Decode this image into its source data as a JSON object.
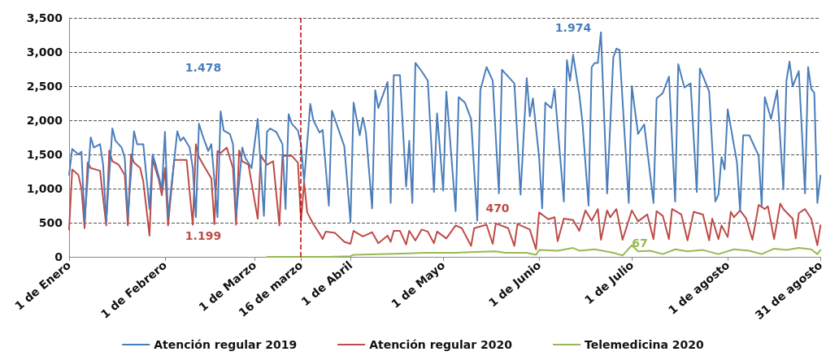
{
  "chart_data": {
    "type": "line",
    "xlim": [
      "2020-01-01",
      "2020-08-31"
    ],
    "xticks": [
      {
        "value": "2020-01-01",
        "label": "1 de Enero"
      },
      {
        "value": "2020-02-01",
        "label": "1 de Febrero"
      },
      {
        "value": "2020-03-01",
        "label": "1 de Marzo"
      },
      {
        "value": "2020-03-16",
        "label": "16 de marzo"
      },
      {
        "value": "2020-04-01",
        "label": "1 de Abril"
      },
      {
        "value": "2020-05-01",
        "label": "1 de Mayo"
      },
      {
        "value": "2020-06-01",
        "label": "1 de Junio"
      },
      {
        "value": "2020-07-01",
        "label": "1 de Julio"
      },
      {
        "value": "2020-08-01",
        "label": "1 de agosto"
      },
      {
        "value": "2020-08-31",
        "label": "31 de agosto"
      }
    ],
    "ylim": [
      0,
      3500
    ],
    "yticks": [
      0,
      500,
      {
        "value": 1000,
        "label": "1,000"
      },
      {
        "value": 1500,
        "label": "1,500"
      },
      {
        "value": 2000,
        "label": "2,000"
      },
      {
        "value": 2500,
        "label": "2,500"
      },
      {
        "value": 3000,
        "label": "3,000"
      },
      {
        "value": 3500,
        "label": "3,500"
      }
    ],
    "grid": "y",
    "legend": "bottom",
    "marker": "none",
    "line_style": "solid",
    "ref_lines": [
      {
        "axis": "x",
        "value": "2020-03-16",
        "label": null,
        "color": "#c00000",
        "line_style": "dashed"
      }
    ],
    "annotations": [
      "1.478",
      "1.199",
      "1.974",
      "470",
      "67"
    ],
    "series": [
      {
        "name": "Atención regular 2019",
        "color": "#4a7ebb",
        "x": [
          "2020-01-01",
          "2020-01-02",
          "2020-01-04",
          "2020-01-05",
          "2020-01-06",
          "2020-01-08",
          "2020-01-09",
          "2020-01-11",
          "2020-01-12",
          "2020-01-13",
          "2020-01-15",
          "2020-01-16",
          "2020-01-18",
          "2020-01-19",
          "2020-01-20",
          "2020-01-22",
          "2020-01-23",
          "2020-01-25",
          "2020-01-27",
          "2020-01-28",
          "2020-01-29",
          "2020-01-31",
          "2020-02-01",
          "2020-02-02",
          "2020-02-05",
          "2020-02-06",
          "2020-02-07",
          "2020-02-09",
          "2020-02-10",
          "2020-02-11",
          "2020-02-12",
          "2020-02-13",
          "2020-02-15",
          "2020-02-16",
          "2020-02-18",
          "2020-02-19",
          "2020-02-20",
          "2020-02-22",
          "2020-02-23",
          "2020-02-24",
          "2020-02-26",
          "2020-02-27",
          "2020-02-29",
          "2020-03-02",
          "2020-03-04",
          "2020-03-05",
          "2020-03-06",
          "2020-03-08",
          "2020-03-10",
          "2020-03-11",
          "2020-03-12",
          "2020-03-13",
          "2020-03-15",
          "2020-03-16",
          "2020-03-17",
          "2020-03-19",
          "2020-03-20",
          "2020-03-22",
          "2020-03-23",
          "2020-03-25",
          "2020-03-26",
          "2020-03-30",
          "2020-04-01",
          "2020-04-02",
          "2020-04-04",
          "2020-04-05",
          "2020-04-06",
          "2020-04-08",
          "2020-04-09",
          "2020-04-10",
          "2020-04-13",
          "2020-04-14",
          "2020-04-15",
          "2020-04-17",
          "2020-04-19",
          "2020-04-20",
          "2020-04-21",
          "2020-04-22",
          "2020-04-24",
          "2020-04-26",
          "2020-04-28",
          "2020-04-29",
          "2020-05-01",
          "2020-05-02",
          "2020-05-05",
          "2020-05-06",
          "2020-05-08",
          "2020-05-10",
          "2020-05-12",
          "2020-05-13",
          "2020-05-15",
          "2020-05-17",
          "2020-05-19",
          "2020-05-20",
          "2020-05-24",
          "2020-05-26",
          "2020-05-28",
          "2020-05-29",
          "2020-05-30",
          "2020-06-01",
          "2020-06-02",
          "2020-06-03",
          "2020-06-05",
          "2020-06-06",
          "2020-06-09",
          "2020-06-10",
          "2020-06-11",
          "2020-06-12",
          "2020-06-14",
          "2020-06-15",
          "2020-06-17",
          "2020-06-18",
          "2020-06-19",
          "2020-06-20",
          "2020-06-21",
          "2020-06-23",
          "2020-06-25",
          "2020-06-26",
          "2020-06-27",
          "2020-06-30",
          "2020-07-01",
          "2020-07-03",
          "2020-07-05",
          "2020-07-08",
          "2020-07-09",
          "2020-07-11",
          "2020-07-13",
          "2020-07-15",
          "2020-07-16",
          "2020-07-18",
          "2020-07-20",
          "2020-07-22",
          "2020-07-23",
          "2020-07-26",
          "2020-07-28",
          "2020-07-29",
          "2020-07-30",
          "2020-07-31",
          "2020-08-01",
          "2020-08-04",
          "2020-08-05",
          "2020-08-06",
          "2020-08-08",
          "2020-08-11",
          "2020-08-12",
          "2020-08-13",
          "2020-08-15",
          "2020-08-17",
          "2020-08-19",
          "2020-08-20",
          "2020-08-21",
          "2020-08-22",
          "2020-08-24",
          "2020-08-26",
          "2020-08-27",
          "2020-08-28",
          "2020-08-29",
          "2020-08-30",
          "2020-08-31"
        ],
        "values": [
          1200,
          1580,
          1500,
          1540,
          530,
          1750,
          1600,
          1650,
          1350,
          530,
          1880,
          1700,
          1600,
          1450,
          580,
          1840,
          1650,
          1650,
          700,
          1500,
          1350,
          1000,
          1830,
          580,
          1840,
          1700,
          1750,
          1600,
          1300,
          580,
          1950,
          1800,
          1550,
          1650,
          580,
          2130,
          1850,
          1800,
          1650,
          600,
          1600,
          1450,
          1300,
          2020,
          600,
          1830,
          1880,
          1830,
          1650,
          700,
          2090,
          1950,
          1850,
          1650,
          1100,
          2240,
          2000,
          1820,
          1860,
          750,
          2140,
          1620,
          510,
          2260,
          1780,
          2040,
          1820,
          710,
          2440,
          2180,
          2560,
          790,
          2660,
          2660,
          1030,
          1700,
          790,
          2840,
          2720,
          2580,
          950,
          2100,
          970,
          2420,
          670,
          2340,
          2260,
          2020,
          530,
          2440,
          2780,
          2580,
          930,
          2740,
          2540,
          910,
          2620,
          2060,
          2320,
          1460,
          710,
          2260,
          2180,
          2460,
          810,
          2880,
          2580,
          2960,
          2380,
          1980,
          750,
          2780,
          2840,
          2840,
          3290,
          930,
          2920,
          3050,
          3030,
          790,
          2500,
          1800,
          1940,
          790,
          2320,
          2400,
          2640,
          810,
          2820,
          2480,
          2540,
          950,
          2760,
          2420,
          810,
          910,
          1460,
          1280,
          2160,
          1380,
          670,
          1780,
          1780,
          1480,
          750,
          2340,
          2020,
          2440,
          990,
          2580,
          2860,
          2500,
          2720,
          930,
          2780,
          2460,
          2400,
          790,
          1190
        ]
      },
      {
        "name": "Atención regular 2020",
        "color": "#be4b48",
        "x": [
          "2020-01-01",
          "2020-01-02",
          "2020-01-04",
          "2020-01-05",
          "2020-01-06",
          "2020-01-07",
          "2020-01-08",
          "2020-01-11",
          "2020-01-13",
          "2020-01-14",
          "2020-01-15",
          "2020-01-17",
          "2020-01-19",
          "2020-01-20",
          "2020-01-21",
          "2020-01-22",
          "2020-01-24",
          "2020-01-25",
          "2020-01-27",
          "2020-01-28",
          "2020-01-30",
          "2020-01-31",
          "2020-02-01",
          "2020-02-02",
          "2020-02-04",
          "2020-02-08",
          "2020-02-10",
          "2020-02-11",
          "2020-02-12",
          "2020-02-14",
          "2020-02-16",
          "2020-02-17",
          "2020-02-18",
          "2020-02-19",
          "2020-02-21",
          "2020-02-23",
          "2020-02-24",
          "2020-02-25",
          "2020-02-26",
          "2020-02-28",
          "2020-03-02",
          "2020-03-03",
          "2020-03-05",
          "2020-03-07",
          "2020-03-09",
          "2020-03-10",
          "2020-03-13",
          "2020-03-15",
          "2020-03-16",
          "2020-03-17",
          "2020-03-18",
          "2020-03-20",
          "2020-03-22",
          "2020-03-23",
          "2020-03-24",
          "2020-03-27",
          "2020-03-30",
          "2020-04-01",
          "2020-04-02",
          "2020-04-05",
          "2020-04-08",
          "2020-04-10",
          "2020-04-13",
          "2020-04-14",
          "2020-04-15",
          "2020-04-17",
          "2020-04-19",
          "2020-04-20",
          "2020-04-22",
          "2020-04-24",
          "2020-04-26",
          "2020-04-28",
          "2020-04-29",
          "2020-05-02",
          "2020-05-05",
          "2020-05-07",
          "2020-05-10",
          "2020-05-11",
          "2020-05-15",
          "2020-05-17",
          "2020-05-18",
          "2020-05-22",
          "2020-05-24",
          "2020-05-25",
          "2020-05-29",
          "2020-05-31",
          "2020-06-01",
          "2020-06-04",
          "2020-06-06",
          "2020-06-07",
          "2020-06-09",
          "2020-06-12",
          "2020-06-14",
          "2020-06-16",
          "2020-06-18",
          "2020-06-20",
          "2020-06-21",
          "2020-06-23",
          "2020-06-24",
          "2020-06-26",
          "2020-06-28",
          "2020-07-01",
          "2020-07-03",
          "2020-07-06",
          "2020-07-08",
          "2020-07-09",
          "2020-07-11",
          "2020-07-13",
          "2020-07-14",
          "2020-07-17",
          "2020-07-19",
          "2020-07-21",
          "2020-07-24",
          "2020-07-26",
          "2020-07-27",
          "2020-07-29",
          "2020-07-30",
          "2020-08-01",
          "2020-08-02",
          "2020-08-03",
          "2020-08-05",
          "2020-08-07",
          "2020-08-09",
          "2020-08-11",
          "2020-08-13",
          "2020-08-14",
          "2020-08-16",
          "2020-08-18",
          "2020-08-19",
          "2020-08-22",
          "2020-08-23",
          "2020-08-24",
          "2020-08-26",
          "2020-08-28",
          "2020-08-30",
          "2020-08-31"
        ],
        "values": [
          400,
          1280,
          1200,
          1000,
          420,
          1380,
          1300,
          1260,
          460,
          1560,
          1400,
          1350,
          1200,
          460,
          1500,
          1380,
          1300,
          1100,
          310,
          1430,
          1130,
          900,
          1300,
          460,
          1420,
          1420,
          470,
          1650,
          1460,
          1300,
          1150,
          480,
          1550,
          1520,
          1600,
          1300,
          470,
          1560,
          1400,
          1350,
          560,
          1480,
          1350,
          1400,
          460,
          1480,
          1480,
          1380,
          520,
          1100,
          650,
          480,
          340,
          260,
          370,
          350,
          220,
          190,
          380,
          300,
          360,
          200,
          310,
          220,
          380,
          380,
          180,
          380,
          240,
          400,
          370,
          200,
          370,
          270,
          460,
          420,
          160,
          420,
          470,
          190,
          490,
          420,
          160,
          480,
          400,
          110,
          650,
          550,
          580,
          230,
          560,
          540,
          380,
          680,
          530,
          700,
          250,
          680,
          580,
          700,
          250,
          680,
          520,
          620,
          260,
          670,
          600,
          260,
          700,
          620,
          240,
          660,
          620,
          240,
          560,
          260,
          460,
          290,
          660,
          580,
          680,
          560,
          250,
          760,
          700,
          740,
          260,
          780,
          700,
          560,
          270,
          640,
          700,
          560,
          170,
          460
        ]
      },
      {
        "name": "Telemedicina 2020",
        "color": "#98b954",
        "x": [
          "2020-03-05",
          "2020-03-25",
          "2020-04-01",
          "2020-04-02",
          "2020-04-10",
          "2020-04-20",
          "2020-04-25",
          "2020-05-05",
          "2020-05-11",
          "2020-05-18",
          "2020-05-21",
          "2020-05-28",
          "2020-05-31",
          "2020-06-01",
          "2020-06-07",
          "2020-06-12",
          "2020-06-14",
          "2020-06-19",
          "2020-06-25",
          "2020-06-28",
          "2020-07-01",
          "2020-07-03",
          "2020-07-07",
          "2020-07-11",
          "2020-07-15",
          "2020-07-19",
          "2020-07-24",
          "2020-07-29",
          "2020-08-03",
          "2020-08-08",
          "2020-08-12",
          "2020-08-16",
          "2020-08-20",
          "2020-08-24",
          "2020-08-28",
          "2020-08-30",
          "2020-08-31"
        ],
        "values": [
          0,
          0,
          10,
          30,
          40,
          50,
          60,
          60,
          70,
          80,
          60,
          60,
          30,
          100,
          90,
          130,
          90,
          110,
          60,
          20,
          170,
          80,
          90,
          40,
          110,
          80,
          100,
          40,
          110,
          90,
          40,
          120,
          100,
          130,
          110,
          40,
          100
        ]
      }
    ]
  }
}
